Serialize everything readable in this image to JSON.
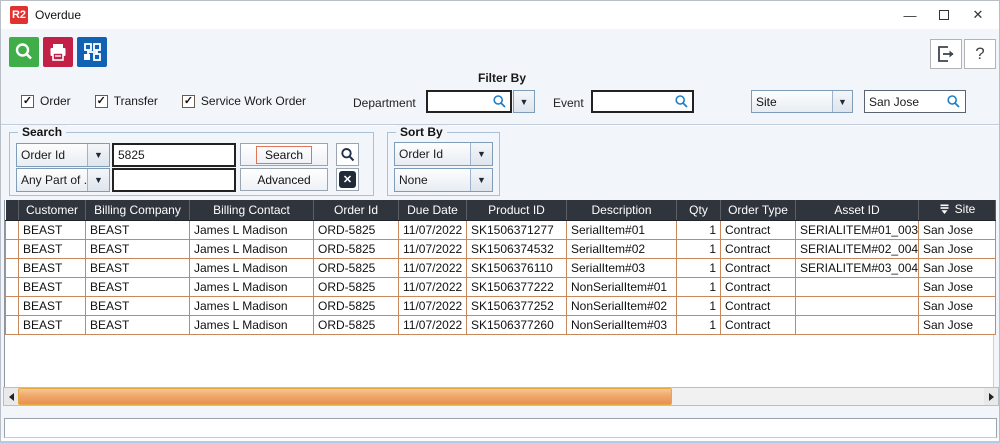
{
  "window": {
    "logo_text": "R2",
    "title": "Overdue",
    "minimize_glyph": "—",
    "close_glyph": "✕",
    "help_label": "?"
  },
  "toolbar": {
    "colors": {
      "search_bg": "#3fae49",
      "print_bg": "#c22047",
      "workflow_bg": "#1262b4"
    }
  },
  "filters": {
    "filter_by_label": "Filter By",
    "checkboxes": [
      {
        "label": "Order",
        "checked": true
      },
      {
        "label": "Transfer",
        "checked": true
      },
      {
        "label": "Service Work Order",
        "checked": true
      }
    ],
    "department": {
      "label": "Department",
      "value": ""
    },
    "event": {
      "label": "Event",
      "value": ""
    },
    "site_dropdown": {
      "selected": "Site"
    },
    "site_search": {
      "value": "San Jose"
    }
  },
  "search_box": {
    "group_label": "Search",
    "field1": {
      "selected": "Order Id",
      "value": "5825"
    },
    "field2": {
      "selected": "Any Part of ...",
      "value": ""
    },
    "search_button": "Search",
    "advanced_button": "Advanced"
  },
  "sort_box": {
    "group_label": "Sort By",
    "sort1": "Order Id",
    "sort2": "None"
  },
  "table": {
    "columns": [
      {
        "label": ""
      },
      {
        "label": "Customer"
      },
      {
        "label": "Billing Company"
      },
      {
        "label": "Billing Contact"
      },
      {
        "label": "Order Id"
      },
      {
        "label": "Due Date"
      },
      {
        "label": "Product ID"
      },
      {
        "label": "Description"
      },
      {
        "label": "Qty"
      },
      {
        "label": "Order Type"
      },
      {
        "label": "Asset ID"
      },
      {
        "label": "Site",
        "icon": "sort-descending-icon"
      }
    ],
    "rows": [
      [
        "",
        "BEAST",
        "BEAST",
        "James L Madison",
        "ORD-5825",
        "11/07/2022",
        "SK1506371277",
        "SerialItem#01",
        "1",
        "Contract",
        "SERIALITEM#01_003",
        "San Jose"
      ],
      [
        "",
        "BEAST",
        "BEAST",
        "James L Madison",
        "ORD-5825",
        "11/07/2022",
        "SK1506374532",
        "SerialItem#02",
        "1",
        "Contract",
        "SERIALITEM#02_004",
        "San Jose"
      ],
      [
        "",
        "BEAST",
        "BEAST",
        "James L Madison",
        "ORD-5825",
        "11/07/2022",
        "SK1506376110",
        "SerialItem#03",
        "1",
        "Contract",
        "SERIALITEM#03_004",
        "San Jose"
      ],
      [
        "",
        "BEAST",
        "BEAST",
        "James L Madison",
        "ORD-5825",
        "11/07/2022",
        "SK1506377222",
        "NonSerialItem#01",
        "1",
        "Contract",
        "",
        "San Jose"
      ],
      [
        "",
        "BEAST",
        "BEAST",
        "James L Madison",
        "ORD-5825",
        "11/07/2022",
        "SK1506377252",
        "NonSerialItem#02",
        "1",
        "Contract",
        "",
        "San Jose"
      ],
      [
        "",
        "BEAST",
        "BEAST",
        "James L Madison",
        "ORD-5825",
        "11/07/2022",
        "SK1506377260",
        "NonSerialItem#03",
        "1",
        "Contract",
        "",
        "San Jose"
      ]
    ]
  },
  "status_bar": {
    "text": ""
  }
}
